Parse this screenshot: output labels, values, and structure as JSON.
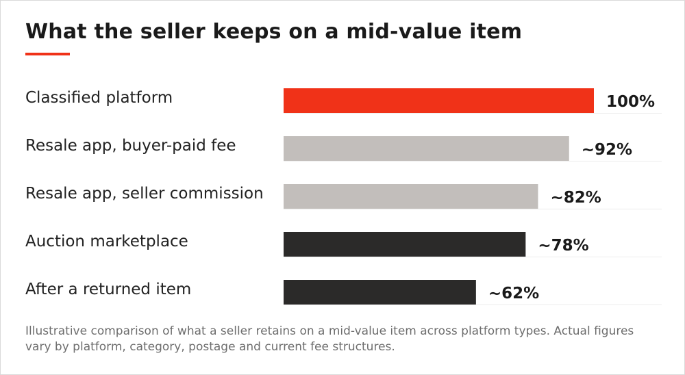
{
  "chart_data": {
    "type": "bar",
    "orientation": "horizontal",
    "title": "What the seller keeps on a mid-value item",
    "categories": [
      "Classified platform",
      "Resale app, buyer-paid fee",
      "Resale app, seller commission",
      "Auction marketplace",
      "After a returned item"
    ],
    "values": [
      100,
      92,
      82,
      78,
      62
    ],
    "value_labels": [
      "100%",
      "~92%",
      "~82%",
      "~78%",
      "~62%"
    ],
    "bar_colors": [
      "#f03218",
      "#c2bebb",
      "#c2bebb",
      "#2b2a29",
      "#2b2a29"
    ],
    "xlim": [
      0,
      100
    ],
    "grid": false,
    "legend": "none",
    "footnote": "Illustrative comparison of what a seller retains on a mid-value item across platform types. Actual figures vary by platform, category, postage and current fee structures."
  },
  "colors": {
    "accent": "#f03218",
    "light_bar": "#c2bebb",
    "dark_bar": "#2b2a29",
    "row_divider": "#ececec"
  }
}
